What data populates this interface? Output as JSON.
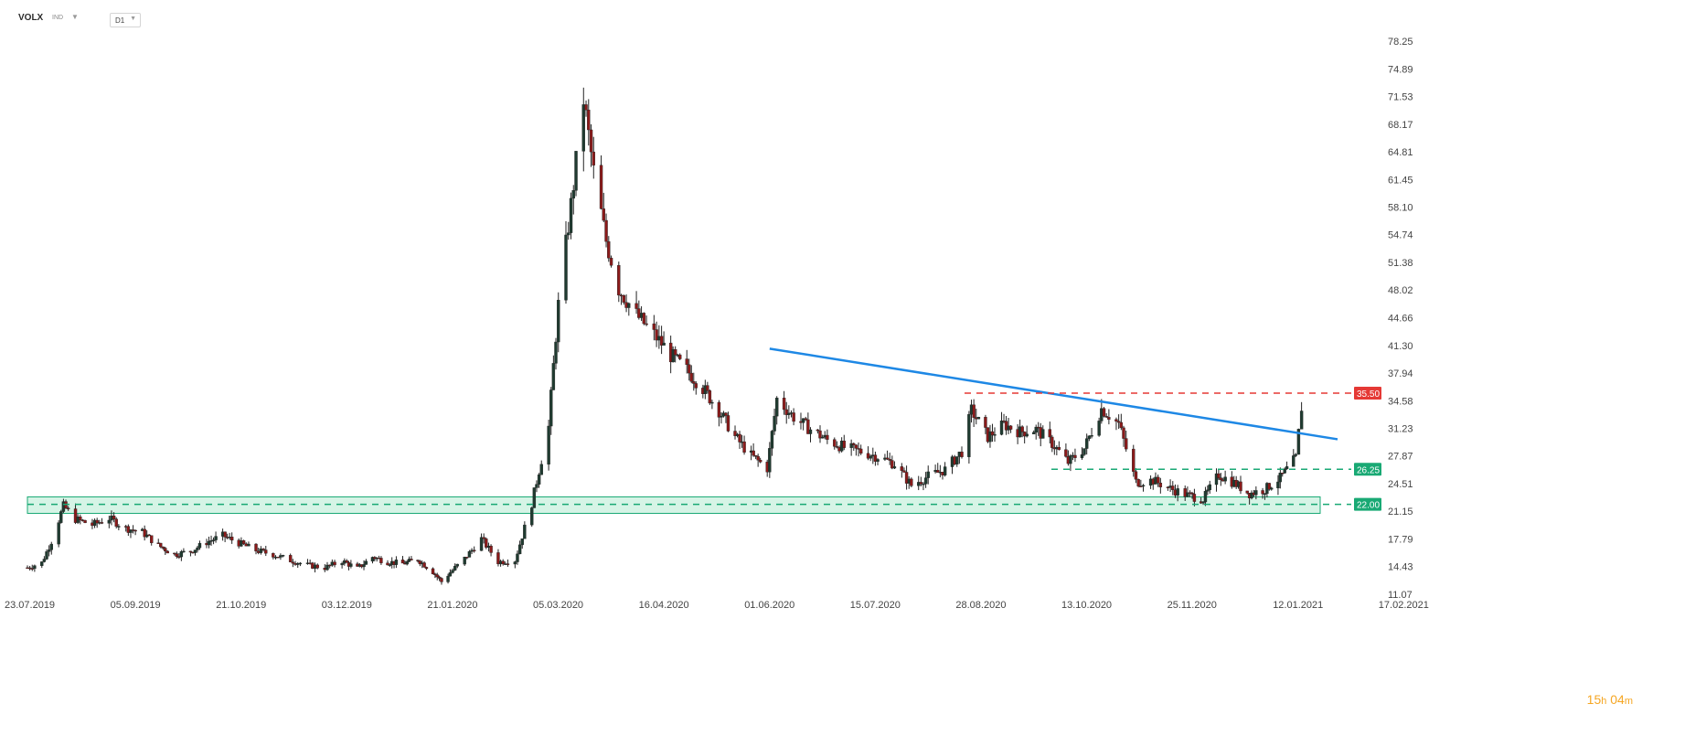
{
  "toolbar": {
    "symbol": "VOLX",
    "indicator": "IND",
    "timeframe": "D1"
  },
  "timer": {
    "hours": "15",
    "h_unit": "h",
    "minutes": "04",
    "m_unit": "m"
  },
  "colors": {
    "bull": "#1f3b30",
    "bear": "#8b1a1a",
    "trendline": "#1e88e5",
    "resistance": "#e53935",
    "support": "#19a974",
    "zone_fill": "#c8f0de",
    "zone_border": "#19a974"
  },
  "chart_data": {
    "type": "candlestick",
    "y_ticks": [
      "78.25",
      "74.89",
      "71.53",
      "68.17",
      "64.81",
      "61.45",
      "58.10",
      "54.74",
      "51.38",
      "48.02",
      "44.66",
      "41.30",
      "37.94",
      "34.58",
      "31.23",
      "27.87",
      "24.51",
      "21.15",
      "17.79",
      "14.43",
      "11.07"
    ],
    "x_ticks": [
      "23.07.2019",
      "05.09.2019",
      "21.10.2019",
      "03.12.2019",
      "21.01.2020",
      "05.03.2020",
      "16.04.2020",
      "01.06.2020",
      "15.07.2020",
      "28.08.2020",
      "13.10.2020",
      "25.11.2020",
      "12.01.2021",
      "17.02.2021"
    ],
    "ylim": [
      11.07,
      78.25
    ],
    "levels": [
      {
        "label": "35.50",
        "value": 35.5,
        "kind": "resistance"
      },
      {
        "label": "26.25",
        "value": 26.25,
        "kind": "support"
      },
      {
        "label": "22.00",
        "value": 22.0,
        "kind": "support"
      }
    ],
    "support_zone": {
      "low": 20.9,
      "high": 22.9
    },
    "trendline": [
      {
        "x": "2020-06-02",
        "y": 40.9
      },
      {
        "x": "2021-01-22",
        "y": 30.6
      }
    ],
    "series": [
      {
        "date": "2019-07-23",
        "close": 14.3
      },
      {
        "date": "2019-07-29",
        "close": 14.9
      },
      {
        "date": "2019-08-02",
        "close": 17.5
      },
      {
        "date": "2019-08-07",
        "close": 21.8
      },
      {
        "date": "2019-08-12",
        "close": 20.2
      },
      {
        "date": "2019-08-19",
        "close": 19.5
      },
      {
        "date": "2019-08-26",
        "close": 20.3
      },
      {
        "date": "2019-09-02",
        "close": 19.1
      },
      {
        "date": "2019-09-09",
        "close": 18.6
      },
      {
        "date": "2019-09-16",
        "close": 17.0
      },
      {
        "date": "2019-09-23",
        "close": 15.9
      },
      {
        "date": "2019-09-30",
        "close": 16.3
      },
      {
        "date": "2019-10-07",
        "close": 17.4
      },
      {
        "date": "2019-10-14",
        "close": 18.2
      },
      {
        "date": "2019-10-21",
        "close": 17.3
      },
      {
        "date": "2019-10-28",
        "close": 16.4
      },
      {
        "date": "2019-11-04",
        "close": 15.9
      },
      {
        "date": "2019-11-11",
        "close": 15.2
      },
      {
        "date": "2019-11-18",
        "close": 14.6
      },
      {
        "date": "2019-11-25",
        "close": 14.3
      },
      {
        "date": "2019-12-02",
        "close": 15.1
      },
      {
        "date": "2019-12-09",
        "close": 14.2
      },
      {
        "date": "2019-12-16",
        "close": 15.6
      },
      {
        "date": "2019-12-23",
        "close": 15.0
      },
      {
        "date": "2019-12-30",
        "close": 14.8
      },
      {
        "date": "2020-01-06",
        "close": 15.3
      },
      {
        "date": "2020-01-13",
        "close": 13.8
      },
      {
        "date": "2020-01-17",
        "close": 12.6
      },
      {
        "date": "2020-01-27",
        "close": 15.4
      },
      {
        "date": "2020-02-03",
        "close": 17.8
      },
      {
        "date": "2020-02-10",
        "close": 15.0
      },
      {
        "date": "2020-02-17",
        "close": 15.2
      },
      {
        "date": "2020-02-24",
        "close": 22.1
      },
      {
        "date": "2020-03-02",
        "close": 31.4
      },
      {
        "date": "2020-03-06",
        "close": 46.2
      },
      {
        "date": "2020-03-11",
        "close": 58.3
      },
      {
        "date": "2020-03-16",
        "close": 71.2
      },
      {
        "date": "2020-03-20",
        "close": 62.4
      },
      {
        "date": "2020-03-25",
        "close": 54.0
      },
      {
        "date": "2020-03-30",
        "close": 48.2
      },
      {
        "date": "2020-04-06",
        "close": 45.0
      },
      {
        "date": "2020-04-13",
        "close": 42.6
      },
      {
        "date": "2020-04-20",
        "close": 40.1
      },
      {
        "date": "2020-04-27",
        "close": 38.3
      },
      {
        "date": "2020-05-04",
        "close": 36.1
      },
      {
        "date": "2020-05-11",
        "close": 33.4
      },
      {
        "date": "2020-05-18",
        "close": 30.2
      },
      {
        "date": "2020-05-25",
        "close": 27.9
      },
      {
        "date": "2020-06-01",
        "close": 26.4
      },
      {
        "date": "2020-06-05",
        "close": 34.8
      },
      {
        "date": "2020-06-12",
        "close": 32.6
      },
      {
        "date": "2020-06-19",
        "close": 31.1
      },
      {
        "date": "2020-06-26",
        "close": 29.8
      },
      {
        "date": "2020-07-03",
        "close": 28.9
      },
      {
        "date": "2020-07-10",
        "close": 28.4
      },
      {
        "date": "2020-07-17",
        "close": 27.8
      },
      {
        "date": "2020-07-24",
        "close": 26.9
      },
      {
        "date": "2020-07-31",
        "close": 24.3
      },
      {
        "date": "2020-08-07",
        "close": 25.4
      },
      {
        "date": "2020-08-14",
        "close": 26.2
      },
      {
        "date": "2020-08-21",
        "close": 28.4
      },
      {
        "date": "2020-08-25",
        "close": 33.4
      },
      {
        "date": "2020-09-01",
        "close": 30.2
      },
      {
        "date": "2020-09-08",
        "close": 31.7
      },
      {
        "date": "2020-09-15",
        "close": 30.8
      },
      {
        "date": "2020-09-22",
        "close": 31.1
      },
      {
        "date": "2020-09-29",
        "close": 29.4
      },
      {
        "date": "2020-10-06",
        "close": 27.1
      },
      {
        "date": "2020-10-13",
        "close": 28.8
      },
      {
        "date": "2020-10-20",
        "close": 33.6
      },
      {
        "date": "2020-10-27",
        "close": 31.8
      },
      {
        "date": "2020-11-03",
        "close": 24.7
      },
      {
        "date": "2020-11-10",
        "close": 24.9
      },
      {
        "date": "2020-11-17",
        "close": 23.9
      },
      {
        "date": "2020-11-24",
        "close": 23.1
      },
      {
        "date": "2020-12-01",
        "close": 22.6
      },
      {
        "date": "2020-12-08",
        "close": 25.6
      },
      {
        "date": "2020-12-15",
        "close": 24.6
      },
      {
        "date": "2020-12-22",
        "close": 23.3
      },
      {
        "date": "2020-12-29",
        "close": 23.8
      },
      {
        "date": "2021-01-05",
        "close": 25.2
      },
      {
        "date": "2021-01-12",
        "close": 27.6
      },
      {
        "date": "2021-01-14",
        "close": 33.8
      },
      {
        "date": "2021-01-15",
        "close": 32.0
      }
    ]
  }
}
